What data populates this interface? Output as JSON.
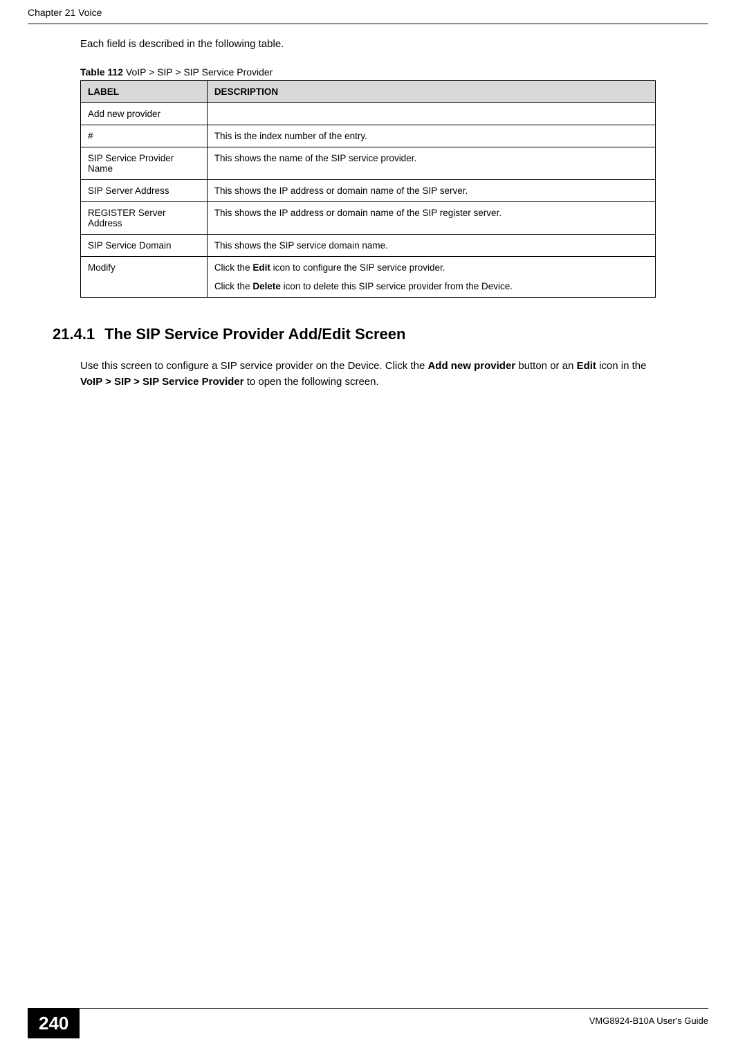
{
  "header": {
    "chapter": "Chapter 21 Voice"
  },
  "intro": "Each field is described in the following table.",
  "table": {
    "caption_prefix": "Table 112",
    "caption_text": "   VoIP > SIP > SIP Service Provider",
    "header_label": "LABEL",
    "header_desc": "DESCRIPTION",
    "rows": [
      {
        "label": "Add new provider",
        "desc": ""
      },
      {
        "label": "#",
        "desc": "This is the index number of the entry."
      },
      {
        "label": "SIP Service Provider Name",
        "desc": "This shows the name of the SIP service provider."
      },
      {
        "label": "SIP Server Address",
        "desc": "This shows the IP address or domain name of the SIP server."
      },
      {
        "label": "REGISTER Server Address",
        "desc": "This shows the IP address or domain name of the SIP register server."
      },
      {
        "label": "SIP Service Domain",
        "desc": "This shows the SIP service domain name."
      }
    ],
    "modify_row": {
      "label": "Modify",
      "line1_a": "Click the ",
      "line1_b": "Edit",
      "line1_c": " icon to configure the SIP service provider.",
      "line2_a": "Click the ",
      "line2_b": "Delete",
      "line2_c": " icon to delete this SIP service provider from the Device."
    }
  },
  "section": {
    "num": "21.4.1",
    "title": "The SIP Service Provider Add/Edit Screen",
    "body_a": "Use this screen to configure a SIP service provider on the Device. Click the ",
    "body_b": "Add new provider",
    "body_c": " button or an ",
    "body_d": "Edit",
    "body_e": " icon in the ",
    "body_f": "VoIP > SIP > SIP Service Provider",
    "body_g": " to open the following screen."
  },
  "footer": {
    "page_num": "240",
    "guide": "VMG8924-B10A User's Guide"
  }
}
